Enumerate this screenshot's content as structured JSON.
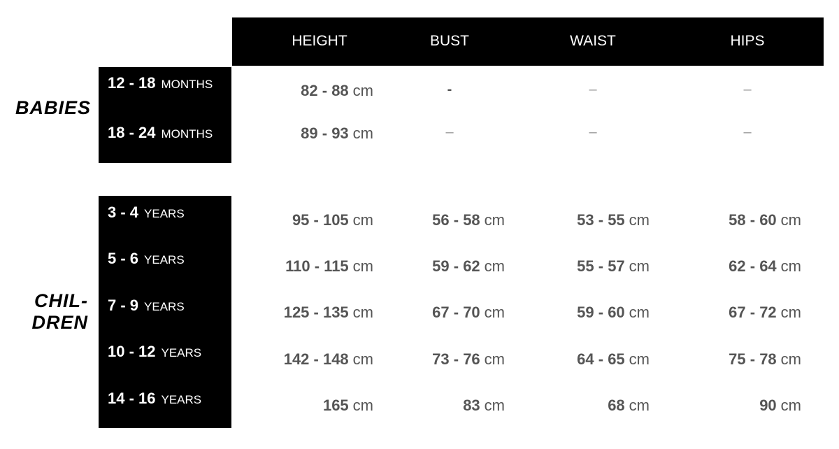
{
  "columns": [
    "HEIGHT",
    "BUST",
    "WAIST",
    "HIPS"
  ],
  "groups": [
    {
      "label": "BABIES",
      "rows": [
        {
          "range": "12 - 18",
          "unit": "MONTHS",
          "values": [
            "82 - 88",
            "-",
            "–",
            "–"
          ]
        },
        {
          "range": "18 - 24",
          "unit": "MONTHS",
          "values": [
            "89 - 93",
            "–",
            "–",
            "–"
          ]
        }
      ]
    },
    {
      "label_line1": "CHIL-",
      "label_line2": "DREN",
      "rows": [
        {
          "range": "3 - 4",
          "unit": "YEARS",
          "values": [
            "95 - 105",
            "56 - 58",
            "53 - 55",
            "58 - 60"
          ]
        },
        {
          "range": "5 - 6",
          "unit": "YEARS",
          "values": [
            "110 - 115",
            "59 - 62",
            "55 - 57",
            "62 - 64"
          ]
        },
        {
          "range": "7 - 9",
          "unit": "YEARS",
          "values": [
            "125 - 135",
            "67 - 70",
            "59 - 60",
            "67 - 72"
          ]
        },
        {
          "range": "10 - 12",
          "unit": "YEARS",
          "values": [
            "142 - 148",
            "73 - 76",
            "64 - 65",
            "75 - 78"
          ]
        },
        {
          "range": "14 - 16",
          "unit": "YEARS",
          "values": [
            "165",
            "83",
            "68",
            "90"
          ]
        }
      ]
    }
  ],
  "value_unit": "cm"
}
